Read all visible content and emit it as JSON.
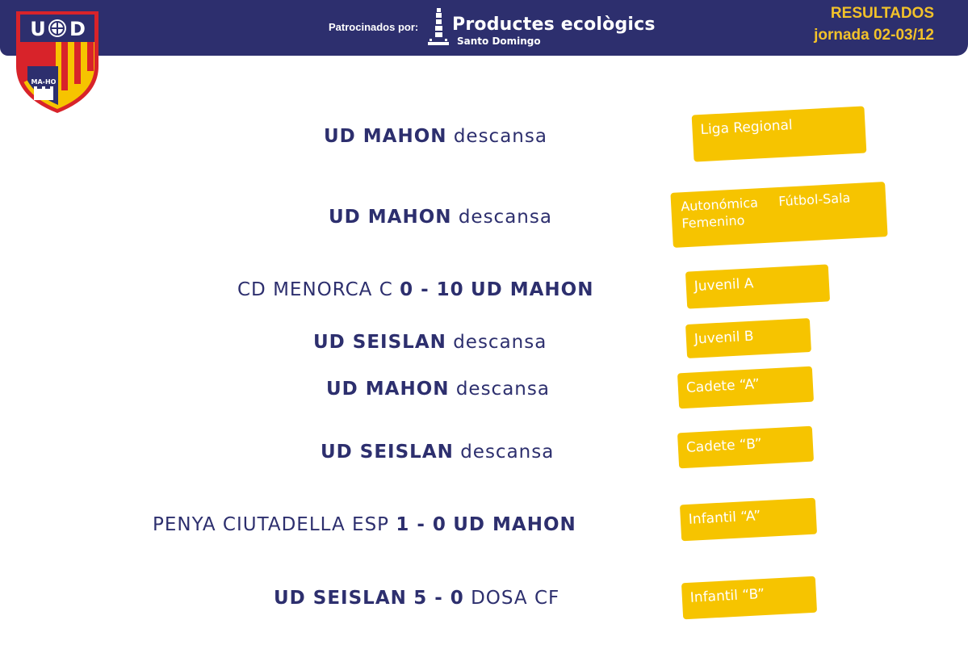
{
  "header": {
    "sponsor_label": "Patrocinados por:",
    "sponsor_name": "Productes ecològics",
    "sponsor_sub": "Santo Domingo",
    "title": "RESULTADOS",
    "subtitle": "jornada 02-03/12"
  },
  "crest": {
    "letters_left": "U",
    "letters_right": "D",
    "motto": "MA-HO"
  },
  "matches": [
    {
      "category": "Liga Regional",
      "home": "UD MAHON",
      "score": "",
      "away": "",
      "note": "descansa"
    },
    {
      "category": "Autonómica     Fútbol-Sala Femenino",
      "home": "UD MAHON",
      "score": "",
      "away": "",
      "note": "descansa"
    },
    {
      "category": "Juvenil A",
      "home": "CD MENORCA C",
      "score": "0 - 10",
      "away": "UD MAHON",
      "note": ""
    },
    {
      "category": "Juvenil B",
      "home": "UD SEISLAN",
      "score": "",
      "away": "",
      "note": "descansa"
    },
    {
      "category": "Cadete “A”",
      "home": "UD MAHON",
      "score": "",
      "away": "",
      "note": "descansa"
    },
    {
      "category": "Cadete “B”",
      "home": "UD SEISLAN",
      "score": "",
      "away": "",
      "note": "descansa"
    },
    {
      "category": "Infantil “A”",
      "home": "PENYA CIUTADELLA ESP",
      "score": "1 - 0",
      "away": "UD MAHON",
      "note": ""
    },
    {
      "category": "Infantil “B”",
      "home": "UD SEISLAN",
      "score": "5 - 0",
      "away": "DOSA CF",
      "note": ""
    }
  ],
  "colors": {
    "navy": "#2d2f6e",
    "gold": "#f6c400",
    "red": "#d8232a"
  }
}
